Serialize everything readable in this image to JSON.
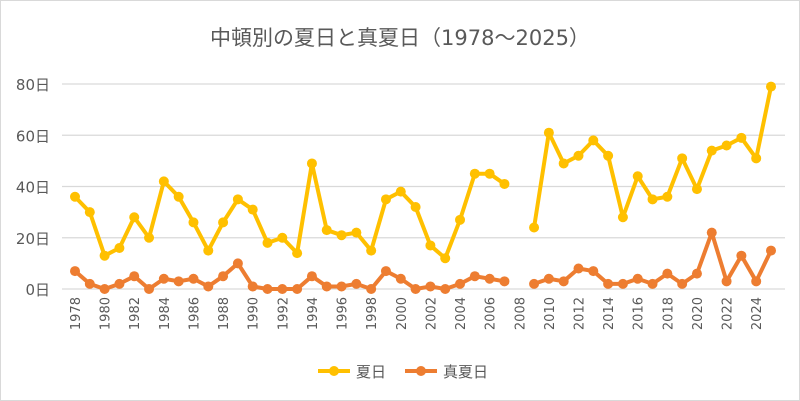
{
  "chart_data": {
    "type": "line",
    "title": "中頓別の夏日と真夏日（1978～2025）",
    "xlabel": "",
    "ylabel": "",
    "x": [
      1978,
      1979,
      1980,
      1981,
      1982,
      1983,
      1984,
      1985,
      1986,
      1987,
      1988,
      1989,
      1990,
      1991,
      1992,
      1993,
      1994,
      1995,
      1996,
      1997,
      1998,
      1999,
      2000,
      2001,
      2002,
      2003,
      2004,
      2005,
      2006,
      2007,
      2008,
      2009,
      2010,
      2011,
      2012,
      2013,
      2014,
      2015,
      2016,
      2017,
      2018,
      2019,
      2020,
      2021,
      2022,
      2023,
      2024,
      2025
    ],
    "x_tick_labels": [
      "1978",
      "1980",
      "1982",
      "1984",
      "1986",
      "1988",
      "1990",
      "1992",
      "1994",
      "1996",
      "1998",
      "2000",
      "2002",
      "2004",
      "2006",
      "2008",
      "2010",
      "2012",
      "2014",
      "2016",
      "2018",
      "2020",
      "2022",
      "2024"
    ],
    "y_tick_labels": [
      "0日",
      "20日",
      "40日",
      "60日",
      "80日"
    ],
    "ylim": [
      0,
      80
    ],
    "grid": true,
    "legend_position": "bottom",
    "series": [
      {
        "name": "夏日",
        "color": "#FFC000",
        "values": [
          36,
          30,
          13,
          16,
          28,
          20,
          42,
          36,
          26,
          15,
          26,
          35,
          31,
          18,
          20,
          14,
          49,
          23,
          21,
          22,
          15,
          35,
          38,
          32,
          17,
          12,
          27,
          45,
          45,
          41,
          null,
          24,
          61,
          49,
          52,
          58,
          52,
          28,
          44,
          35,
          36,
          51,
          39,
          54,
          56,
          59,
          51,
          79
        ]
      },
      {
        "name": "真夏日",
        "color": "#ED7D31",
        "values": [
          7,
          2,
          0,
          2,
          5,
          0,
          4,
          3,
          4,
          1,
          5,
          10,
          1,
          0,
          0,
          0,
          5,
          1,
          1,
          2,
          0,
          7,
          4,
          0,
          1,
          0,
          2,
          5,
          4,
          3,
          null,
          2,
          4,
          3,
          8,
          7,
          2,
          2,
          4,
          2,
          6,
          2,
          6,
          22,
          3,
          13,
          3,
          15
        ]
      }
    ]
  }
}
